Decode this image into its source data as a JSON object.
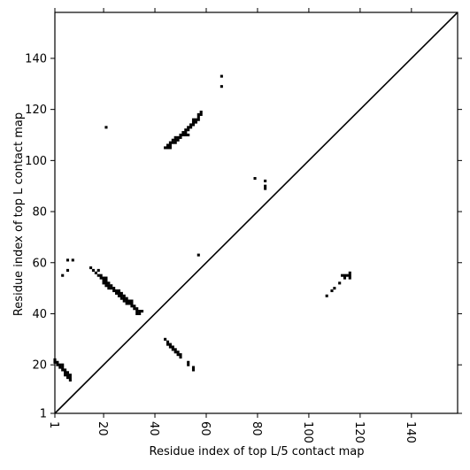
{
  "chart_data": {
    "type": "scatter",
    "xlabel": "Residue index of top L/5 contact map",
    "ylabel": "Residue index of top L contact map",
    "xlim": [
      1,
      158
    ],
    "ylim": [
      1,
      158
    ],
    "xticks": [
      1,
      20,
      40,
      60,
      80,
      100,
      120,
      140
    ],
    "yticks": [
      1,
      20,
      40,
      60,
      80,
      100,
      120,
      140
    ],
    "diagonal": true,
    "marker": "square",
    "color": "#000000",
    "upper_left_points": [
      [
        1,
        22
      ],
      [
        1,
        21
      ],
      [
        2,
        21
      ],
      [
        2,
        20
      ],
      [
        3,
        20
      ],
      [
        4,
        20
      ],
      [
        3,
        19
      ],
      [
        4,
        19
      ],
      [
        4,
        18
      ],
      [
        5,
        18
      ],
      [
        5,
        17
      ],
      [
        6,
        17
      ],
      [
        5,
        16
      ],
      [
        6,
        16
      ],
      [
        6,
        15
      ],
      [
        7,
        16
      ],
      [
        7,
        15
      ],
      [
        7,
        14
      ],
      [
        4,
        55
      ],
      [
        6,
        57
      ],
      [
        6,
        61
      ],
      [
        8,
        61
      ],
      [
        15,
        58
      ],
      [
        16,
        57
      ],
      [
        17,
        56
      ],
      [
        18,
        57
      ],
      [
        18,
        55
      ],
      [
        19,
        55
      ],
      [
        19,
        54
      ],
      [
        20,
        54
      ],
      [
        20,
        53
      ],
      [
        21,
        54
      ],
      [
        21,
        53
      ],
      [
        20,
        52
      ],
      [
        21,
        52
      ],
      [
        21,
        51
      ],
      [
        22,
        52
      ],
      [
        22,
        51
      ],
      [
        22,
        50
      ],
      [
        23,
        51
      ],
      [
        23,
        50
      ],
      [
        24,
        50
      ],
      [
        24,
        49
      ],
      [
        25,
        49
      ],
      [
        25,
        48
      ],
      [
        26,
        49
      ],
      [
        26,
        48
      ],
      [
        26,
        47
      ],
      [
        27,
        48
      ],
      [
        27,
        47
      ],
      [
        27,
        46
      ],
      [
        28,
        47
      ],
      [
        28,
        46
      ],
      [
        28,
        45
      ],
      [
        29,
        46
      ],
      [
        29,
        45
      ],
      [
        29,
        44
      ],
      [
        30,
        45
      ],
      [
        30,
        44
      ],
      [
        31,
        45
      ],
      [
        31,
        44
      ],
      [
        31,
        43
      ],
      [
        32,
        43
      ],
      [
        32,
        42
      ],
      [
        33,
        42
      ],
      [
        33,
        41
      ],
      [
        33,
        40
      ],
      [
        34,
        41
      ],
      [
        34,
        40
      ],
      [
        35,
        41
      ],
      [
        21,
        113
      ],
      [
        44,
        105
      ],
      [
        45,
        105
      ],
      [
        45,
        106
      ],
      [
        46,
        105
      ],
      [
        46,
        106
      ],
      [
        46,
        107
      ],
      [
        47,
        107
      ],
      [
        47,
        108
      ],
      [
        48,
        107
      ],
      [
        48,
        108
      ],
      [
        48,
        109
      ],
      [
        49,
        109
      ],
      [
        49,
        108
      ],
      [
        50,
        109
      ],
      [
        50,
        110
      ],
      [
        51,
        110
      ],
      [
        51,
        111
      ],
      [
        52,
        111
      ],
      [
        52,
        112
      ],
      [
        52,
        110
      ],
      [
        53,
        110
      ],
      [
        53,
        112
      ],
      [
        53,
        113
      ],
      [
        54,
        113
      ],
      [
        54,
        114
      ],
      [
        55,
        114
      ],
      [
        55,
        115
      ],
      [
        55,
        116
      ],
      [
        56,
        116
      ],
      [
        56,
        115
      ],
      [
        57,
        116
      ],
      [
        57,
        117
      ],
      [
        57,
        118
      ],
      [
        58,
        118
      ],
      [
        58,
        119
      ],
      [
        66,
        133
      ],
      [
        66,
        129
      ],
      [
        57,
        63
      ],
      [
        44,
        30
      ],
      [
        45,
        29
      ],
      [
        45,
        28
      ],
      [
        46,
        28
      ],
      [
        46,
        27
      ],
      [
        47,
        27
      ],
      [
        47,
        26
      ],
      [
        48,
        26
      ],
      [
        48,
        25
      ],
      [
        49,
        25
      ],
      [
        49,
        24
      ],
      [
        50,
        24
      ],
      [
        50,
        23
      ],
      [
        53,
        21
      ],
      [
        53,
        20
      ],
      [
        55,
        19
      ],
      [
        55,
        18
      ],
      [
        79,
        93
      ],
      [
        83,
        92
      ],
      [
        83,
        90
      ],
      [
        83,
        89
      ]
    ],
    "lower_right_points": [
      [
        107,
        47
      ],
      [
        109,
        49
      ],
      [
        110,
        50
      ],
      [
        112,
        52
      ],
      [
        113,
        55
      ],
      [
        114,
        55
      ],
      [
        114,
        54
      ],
      [
        115,
        55
      ],
      [
        116,
        56
      ],
      [
        116,
        55
      ],
      [
        116,
        54
      ]
    ]
  }
}
